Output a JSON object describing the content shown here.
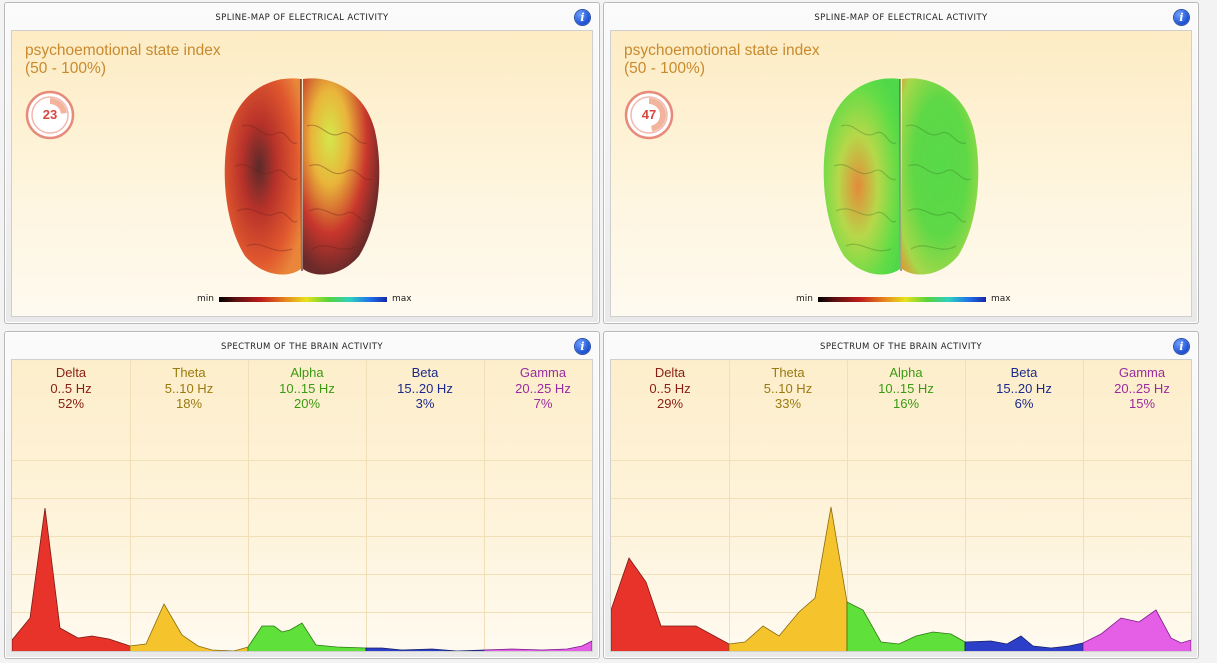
{
  "spline_panels": [
    {
      "title": "SPLINE-MAP OF ELECTRICAL ACTIVITY",
      "info": "i",
      "index_label_line1": "psychoemotional state index",
      "index_label_line2": "(50 - 100%)",
      "index_value": "23",
      "index_fraction": 0.23,
      "legend_min": "min",
      "legend_max": "max"
    },
    {
      "title": "SPLINE-MAP OF ELECTRICAL ACTIVITY",
      "info": "i",
      "index_label_line1": "psychoemotional state index",
      "index_label_line2": "(50 - 100%)",
      "index_value": "47",
      "index_fraction": 0.47,
      "legend_min": "min",
      "legend_max": "max"
    }
  ],
  "spectrum_panels": [
    {
      "title": "SPECTRUM OF THE BRAIN ACTIVITY",
      "info": "i",
      "bands": [
        {
          "name": "Delta",
          "range": "0..5 Hz",
          "percent": "52%",
          "color": "#8a1e12"
        },
        {
          "name": "Theta",
          "range": "5..10 Hz",
          "percent": "18%",
          "color": "#9a7a10"
        },
        {
          "name": "Alpha",
          "range": "10..15 Hz",
          "percent": "20%",
          "color": "#3a9a12"
        },
        {
          "name": "Beta",
          "range": "15..20 Hz",
          "percent": "3%",
          "color": "#1b2a8a"
        },
        {
          "name": "Gamma",
          "range": "20..25 Hz",
          "percent": "7%",
          "color": "#9a2ca0"
        }
      ]
    },
    {
      "title": "SPECTRUM OF THE BRAIN ACTIVITY",
      "info": "i",
      "bands": [
        {
          "name": "Delta",
          "range": "0..5 Hz",
          "percent": "29%",
          "color": "#8a1e12"
        },
        {
          "name": "Theta",
          "range": "5..10 Hz",
          "percent": "33%",
          "color": "#9a7a10"
        },
        {
          "name": "Alpha",
          "range": "10..15 Hz",
          "percent": "16%",
          "color": "#3a9a12"
        },
        {
          "name": "Beta",
          "range": "15..20 Hz",
          "percent": "6%",
          "color": "#1b2a8a"
        },
        {
          "name": "Gamma",
          "range": "20..25 Hz",
          "percent": "15%",
          "color": "#9a2ca0"
        }
      ]
    }
  ],
  "band_fill_colors": [
    "#e8332b",
    "#f5c42c",
    "#5fe03a",
    "#2d3fc8",
    "#e45ee6"
  ]
}
